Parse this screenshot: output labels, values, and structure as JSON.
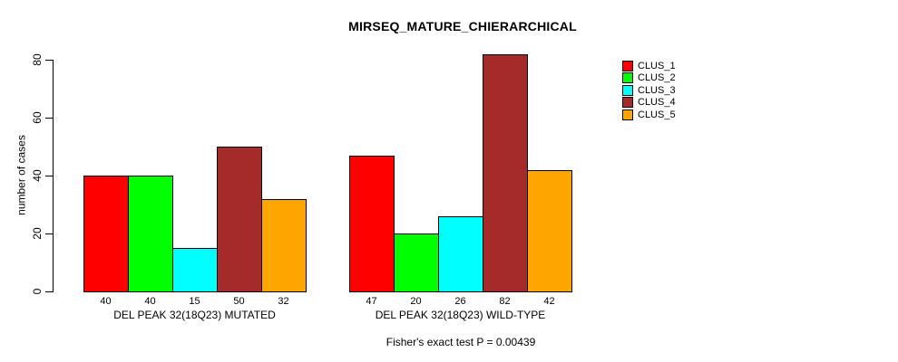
{
  "chart_data": {
    "type": "bar",
    "title": "MIRSEQ_MATURE_CHIERARCHICAL",
    "ylabel": "number of cases",
    "xlabel": "",
    "footnote": "Fisher's exact test P = 0.00439",
    "ylim": [
      0,
      85
    ],
    "yticks": [
      0,
      20,
      40,
      60,
      80
    ],
    "grid": false,
    "legend_position": "right",
    "categories": [
      "DEL PEAK 32(18Q23) MUTATED",
      "DEL PEAK 32(18Q23) WILD-TYPE"
    ],
    "series": [
      {
        "name": "CLUS_1",
        "color": "#FF0000",
        "values": [
          40,
          47
        ]
      },
      {
        "name": "CLUS_2",
        "color": "#00FF00",
        "values": [
          40,
          20
        ]
      },
      {
        "name": "CLUS_3",
        "color": "#00FFFF",
        "values": [
          15,
          26
        ]
      },
      {
        "name": "CLUS_4",
        "color": "#A52A2A",
        "values": [
          50,
          82
        ]
      },
      {
        "name": "CLUS_5",
        "color": "#FFA500",
        "values": [
          32,
          42
        ]
      }
    ]
  }
}
